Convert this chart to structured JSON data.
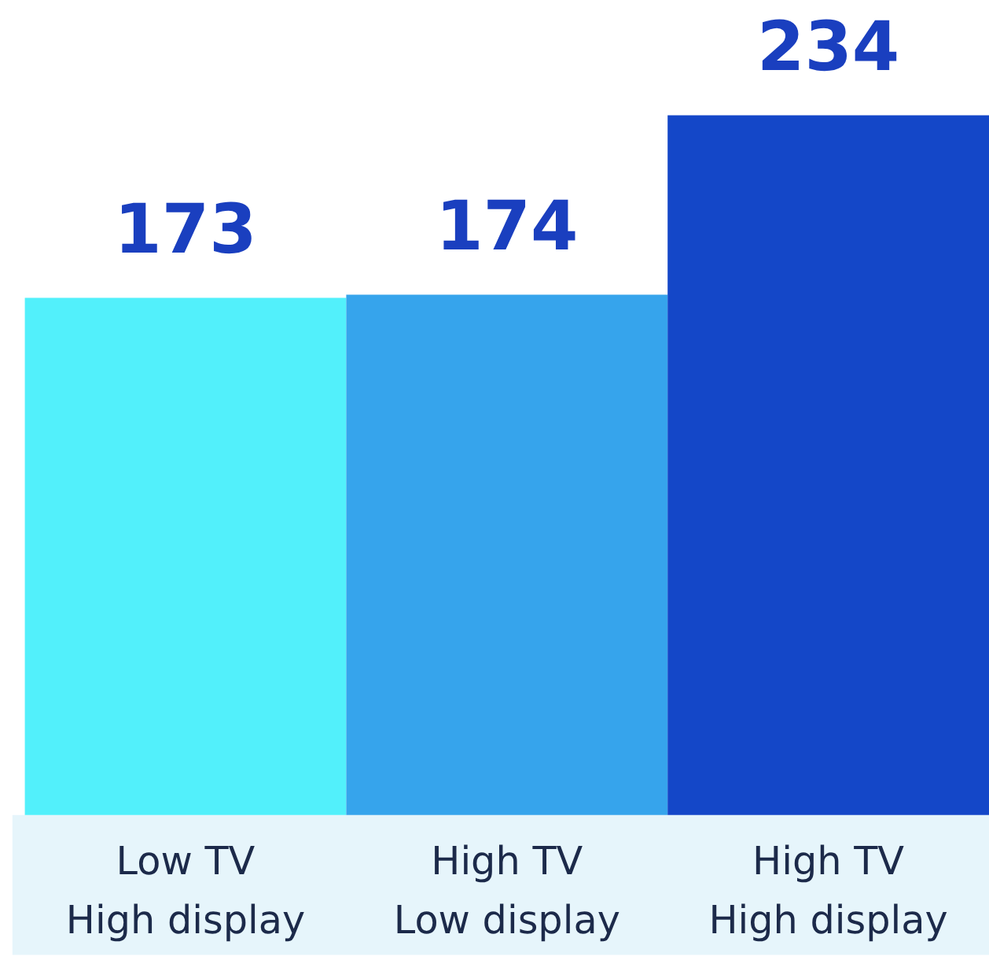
{
  "chart_data": {
    "type": "bar",
    "categories": [
      "Low TV\nHigh display",
      "High TV\nLow display",
      "High TV\nHigh display"
    ],
    "values": [
      173,
      174,
      234
    ],
    "colors": [
      "#52f0fb",
      "#36a4ec",
      "#1447c8"
    ],
    "data_labels": true
  }
}
